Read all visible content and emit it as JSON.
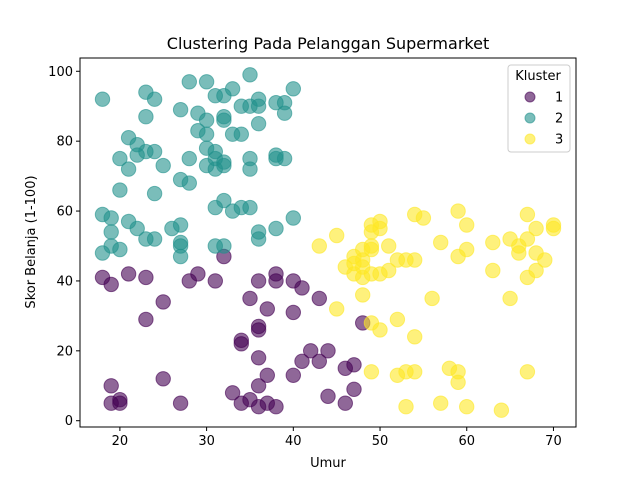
{
  "chart_data": {
    "type": "scatter",
    "title": "Clustering Pada Pelanggan Supermarket",
    "xlabel": "Umur",
    "ylabel": "Skor Belanja (1-100)",
    "xlim": [
      15.4,
      72.6
    ],
    "ylim": [
      -1.8,
      103.8
    ],
    "xticks": [
      20,
      30,
      40,
      50,
      60,
      70
    ],
    "yticks": [
      0,
      20,
      40,
      60,
      80,
      100
    ],
    "grid": false,
    "legend": {
      "title": "Kluster",
      "placement": "top-right"
    },
    "series": [
      {
        "name": "1",
        "color": "#440154",
        "points": [
          [
            18,
            41
          ],
          [
            19,
            39
          ],
          [
            21,
            42
          ],
          [
            23,
            41
          ],
          [
            25,
            34
          ],
          [
            23,
            29
          ],
          [
            28,
            40
          ],
          [
            29,
            42
          ],
          [
            31,
            40
          ],
          [
            32,
            47
          ],
          [
            36,
            40
          ],
          [
            38,
            42
          ],
          [
            38,
            40
          ],
          [
            40,
            40
          ],
          [
            41,
            38
          ],
          [
            40,
            31
          ],
          [
            43,
            35
          ],
          [
            35,
            35
          ],
          [
            37,
            32
          ],
          [
            36,
            27
          ],
          [
            36,
            26
          ],
          [
            34,
            22
          ],
          [
            34,
            23
          ],
          [
            36,
            18
          ],
          [
            37,
            13
          ],
          [
            33,
            8
          ],
          [
            34,
            5
          ],
          [
            35,
            6
          ],
          [
            36,
            4
          ],
          [
            37,
            5
          ],
          [
            36,
            10
          ],
          [
            40,
            13
          ],
          [
            41,
            17
          ],
          [
            42,
            20
          ],
          [
            43,
            17
          ],
          [
            44,
            20
          ],
          [
            46,
            15
          ],
          [
            47,
            16
          ],
          [
            48,
            28
          ],
          [
            47,
            9
          ],
          [
            46,
            5
          ],
          [
            44,
            7
          ],
          [
            19,
            10
          ],
          [
            19,
            5
          ],
          [
            20,
            5
          ],
          [
            20,
            6
          ],
          [
            25,
            12
          ],
          [
            27,
            5
          ],
          [
            38,
            4
          ]
        ]
      },
      {
        "name": "2",
        "color": "#21918c",
        "points": [
          [
            18,
            92
          ],
          [
            23,
            94
          ],
          [
            24,
            92
          ],
          [
            28,
            97
          ],
          [
            30,
            97
          ],
          [
            35,
            99
          ],
          [
            36,
            92
          ],
          [
            38,
            91
          ],
          [
            39,
            91
          ],
          [
            40,
            95
          ],
          [
            33,
            95
          ],
          [
            32,
            93
          ],
          [
            31,
            93
          ],
          [
            35,
            90
          ],
          [
            36,
            90
          ],
          [
            34,
            90
          ],
          [
            27,
            89
          ],
          [
            29,
            88
          ],
          [
            39,
            88
          ],
          [
            23,
            87
          ],
          [
            30,
            86
          ],
          [
            32,
            86
          ],
          [
            32,
            87
          ],
          [
            36,
            85
          ],
          [
            29,
            83
          ],
          [
            30,
            82
          ],
          [
            33,
            82
          ],
          [
            34,
            82
          ],
          [
            21,
            81
          ],
          [
            22,
            79
          ],
          [
            24,
            77
          ],
          [
            23,
            77
          ],
          [
            22,
            76
          ],
          [
            20,
            75
          ],
          [
            28,
            75
          ],
          [
            31,
            75
          ],
          [
            35,
            75
          ],
          [
            38,
            75
          ],
          [
            38,
            76
          ],
          [
            39,
            75
          ],
          [
            30,
            78
          ],
          [
            31,
            77
          ],
          [
            32,
            74
          ],
          [
            32,
            73
          ],
          [
            30,
            73
          ],
          [
            31,
            72
          ],
          [
            35,
            72
          ],
          [
            25,
            73
          ],
          [
            21,
            72
          ],
          [
            27,
            69
          ],
          [
            28,
            68
          ],
          [
            20,
            66
          ],
          [
            24,
            65
          ],
          [
            32,
            63
          ],
          [
            34,
            61
          ],
          [
            35,
            61
          ],
          [
            31,
            61
          ],
          [
            33,
            60
          ],
          [
            18,
            59
          ],
          [
            19,
            58
          ],
          [
            21,
            57
          ],
          [
            27,
            56
          ],
          [
            26,
            55
          ],
          [
            22,
            55
          ],
          [
            19,
            54
          ],
          [
            24,
            52
          ],
          [
            23,
            52
          ],
          [
            27,
            51
          ],
          [
            27,
            50
          ],
          [
            19,
            50
          ],
          [
            20,
            49
          ],
          [
            18,
            48
          ],
          [
            31,
            50
          ],
          [
            32,
            50
          ],
          [
            27,
            47
          ],
          [
            36,
            54
          ],
          [
            38,
            55
          ],
          [
            40,
            58
          ],
          [
            36,
            52
          ]
        ]
      },
      {
        "name": "3",
        "color": "#fde725",
        "points": [
          [
            43,
            50
          ],
          [
            45,
            53
          ],
          [
            46,
            44
          ],
          [
            47,
            42
          ],
          [
            48,
            41
          ],
          [
            47,
            47
          ],
          [
            48,
            46
          ],
          [
            48,
            49
          ],
          [
            49,
            49
          ],
          [
            49,
            50
          ],
          [
            49,
            54
          ],
          [
            49,
            56
          ],
          [
            50,
            57
          ],
          [
            50,
            55
          ],
          [
            51,
            50
          ],
          [
            52,
            46
          ],
          [
            51,
            43
          ],
          [
            50,
            42
          ],
          [
            49,
            42
          ],
          [
            48,
            36
          ],
          [
            48,
            44
          ],
          [
            47,
            45
          ],
          [
            45,
            32
          ],
          [
            49,
            28
          ],
          [
            50,
            26
          ],
          [
            52,
            29
          ],
          [
            54,
            24
          ],
          [
            54,
            14
          ],
          [
            53,
            14
          ],
          [
            52,
            13
          ],
          [
            49,
            14
          ],
          [
            53,
            4
          ],
          [
            57,
            5
          ],
          [
            58,
            15
          ],
          [
            59,
            14
          ],
          [
            59,
            11
          ],
          [
            60,
            4
          ],
          [
            64,
            3
          ],
          [
            67,
            14
          ],
          [
            54,
            59
          ],
          [
            55,
            58
          ],
          [
            56,
            35
          ],
          [
            57,
            51
          ],
          [
            59,
            60
          ],
          [
            60,
            56
          ],
          [
            60,
            49
          ],
          [
            59,
            47
          ],
          [
            54,
            46
          ],
          [
            53,
            46
          ],
          [
            63,
            51
          ],
          [
            63,
            43
          ],
          [
            65,
            52
          ],
          [
            65,
            35
          ],
          [
            66,
            50
          ],
          [
            66,
            48
          ],
          [
            67,
            59
          ],
          [
            67,
            52
          ],
          [
            67,
            41
          ],
          [
            68,
            55
          ],
          [
            68,
            48
          ],
          [
            68,
            43
          ],
          [
            69,
            46
          ],
          [
            70,
            56
          ],
          [
            70,
            55
          ]
        ]
      }
    ]
  }
}
